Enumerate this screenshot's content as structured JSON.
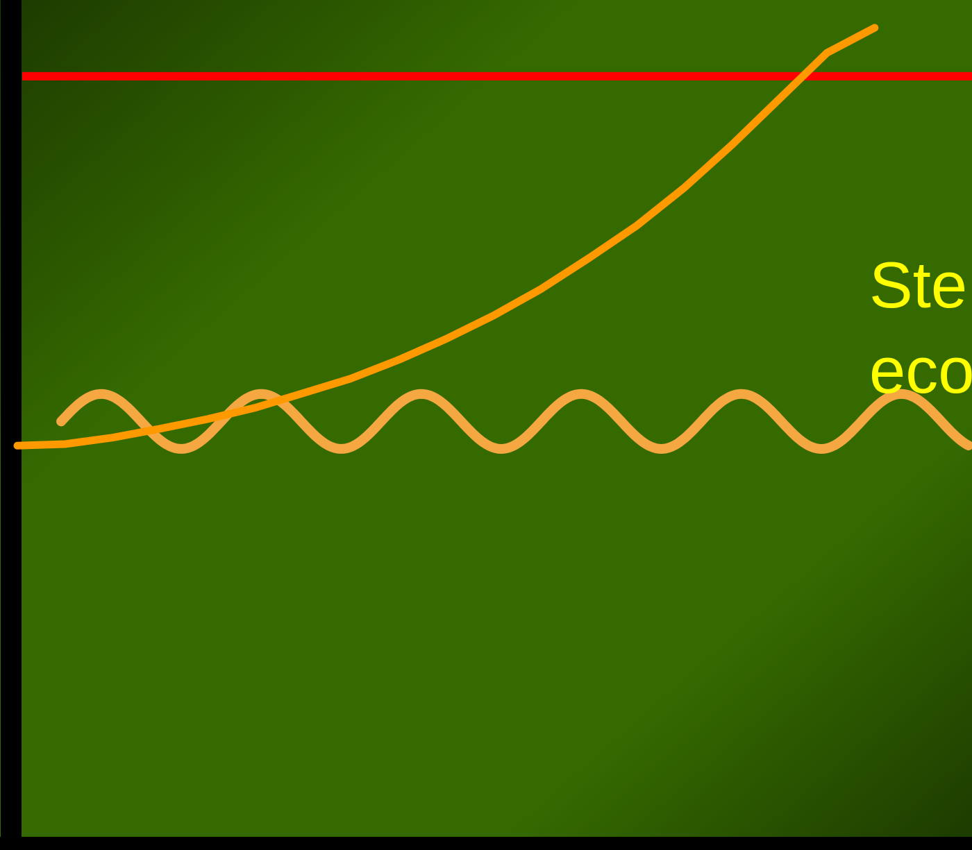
{
  "chart_data": {
    "type": "line",
    "title": "",
    "xlabel": "",
    "ylabel": "",
    "grid": false,
    "legend": "none",
    "xlim": [
      0,
      100
    ],
    "ylim": [
      0,
      100
    ],
    "colors": {
      "background_dark": "#1c3a00",
      "background_light": "#356a00",
      "axis": "#000000",
      "limit_line": "#ff0000",
      "series": "#ff9900",
      "wave": "#f5a742",
      "annotation": "#ffff00"
    },
    "series": [
      {
        "kind": "horizontal-limit",
        "y": 94
      },
      {
        "kind": "exponential-growth",
        "points": [
          [
            0,
            48.3
          ],
          [
            5,
            48.5
          ],
          [
            10,
            49.3
          ],
          [
            15,
            50.4
          ],
          [
            20,
            51.6
          ],
          [
            25,
            53.0
          ],
          [
            30,
            54.8
          ],
          [
            35,
            56.6
          ],
          [
            40,
            58.9
          ],
          [
            45,
            61.5
          ],
          [
            50,
            64.4
          ],
          [
            55,
            67.7
          ],
          [
            60,
            71.5
          ],
          [
            65,
            75.5
          ],
          [
            70,
            80.2
          ],
          [
            75,
            85.5
          ],
          [
            80,
            91.2
          ],
          [
            85,
            96.9
          ],
          [
            90,
            100
          ]
        ]
      },
      {
        "kind": "oscillation-steady-state",
        "baseline": 51.3,
        "amplitude": 3.4,
        "period": 16.8,
        "start_x": 4.6
      }
    ],
    "annotations": [
      {
        "text": "Ste"
      },
      {
        "text": "eco"
      }
    ]
  }
}
